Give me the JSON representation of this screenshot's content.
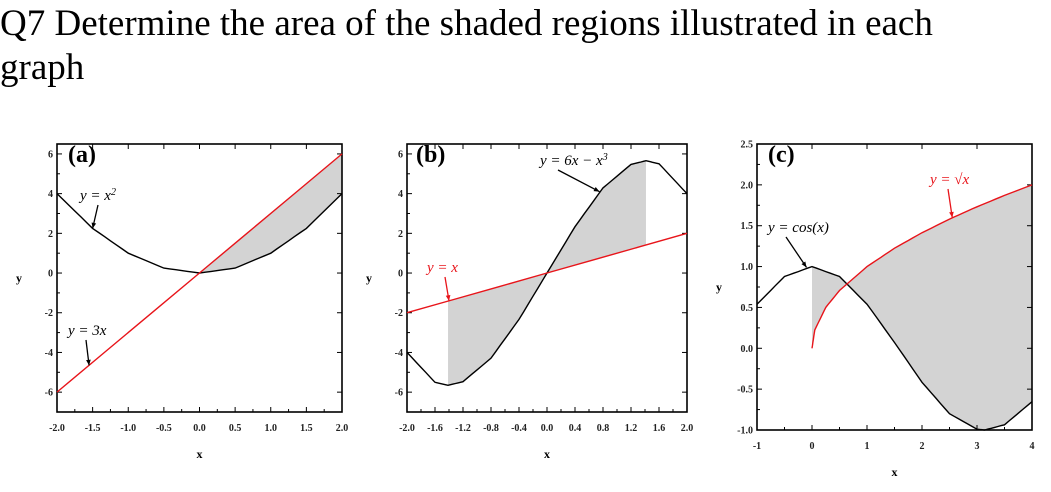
{
  "question": {
    "text": "Q7 Determine the area of the shaded regions illustrated in each\ngraph"
  },
  "colors": {
    "shade": "#d3d3d3",
    "black_curve": "#000000",
    "red_curve": "#e8141a"
  },
  "chart_data": [
    {
      "type": "area",
      "panel_label": "(a)",
      "xlabel": "x",
      "ylabel": "y",
      "xlim": [
        -2.0,
        2.0
      ],
      "ylim": [
        -7,
        6.5
      ],
      "xticks": [
        -2.0,
        -1.5,
        -1.0,
        -0.5,
        0.0,
        0.5,
        1.0,
        1.5,
        2.0
      ],
      "xtick_labels": [
        "-2.0",
        "-1.5",
        "-1.0",
        "-0.5",
        "0.0",
        "0.5",
        "1.0",
        "1.5",
        "2.0"
      ],
      "yticks": [
        -6,
        -4,
        -2,
        0,
        2,
        4,
        6
      ],
      "ytick_labels": [
        "-6",
        "-4",
        "-2",
        "0",
        "2",
        "4",
        "6"
      ],
      "series": [
        {
          "name": "y = x²",
          "color": "#000000",
          "x": [
            -2.0,
            -1.5,
            -1.0,
            -0.5,
            0.0,
            0.5,
            1.0,
            1.5,
            2.0
          ],
          "y": [
            4.0,
            2.25,
            1.0,
            0.25,
            0.0,
            0.25,
            1.0,
            2.25,
            4.0
          ]
        },
        {
          "name": "y = 3x",
          "color": "#e8141a",
          "x": [
            -2.0,
            2.0
          ],
          "y": [
            -6.0,
            6.0
          ]
        }
      ],
      "shaded_region": {
        "between": [
          "y = 3x",
          "y = x²"
        ],
        "x_from": 0.0,
        "x_to": 2.0
      },
      "annotations": [
        {
          "text_main": "y = x",
          "text_sup": "2",
          "color": "#000000",
          "points_to": [
            -1.5,
            2.25
          ]
        },
        {
          "text_main": "y = 3x",
          "text_sup": "",
          "color": "#000000",
          "points_to": [
            -1.55,
            -4.65
          ]
        }
      ]
    },
    {
      "type": "area",
      "panel_label": "(b)",
      "xlabel": "x",
      "ylabel": "y",
      "xlim": [
        -2.0,
        2.0
      ],
      "ylim": [
        -7,
        6.5
      ],
      "xticks": [
        -2.0,
        -1.6,
        -1.2,
        -0.8,
        -0.4,
        0.0,
        0.4,
        0.8,
        1.2,
        1.6,
        2.0
      ],
      "xtick_labels": [
        "-2.0",
        "-1.6",
        "-1.2",
        "-0.8",
        "-0.4",
        "0.0",
        "0.4",
        "0.8",
        "1.2",
        "1.6",
        "2.0"
      ],
      "yticks": [
        -6,
        -4,
        -2,
        0,
        2,
        4,
        6
      ],
      "ytick_labels": [
        "-6",
        "-4",
        "-2",
        "0",
        "2",
        "4",
        "6"
      ],
      "series": [
        {
          "name": "y = 6x − x³",
          "color": "#000000",
          "x": [
            -2.0,
            -1.6,
            -1.414,
            -1.2,
            -0.8,
            -0.4,
            0.0,
            0.4,
            0.8,
            1.2,
            1.414,
            1.6,
            2.0
          ],
          "y": [
            -4.0,
            -5.504,
            -5.657,
            -5.472,
            -4.288,
            -2.336,
            0.0,
            2.336,
            4.288,
            5.472,
            5.657,
            5.504,
            4.0
          ]
        },
        {
          "name": "y = x",
          "color": "#e8141a",
          "x": [
            -2.0,
            2.0
          ],
          "y": [
            -2.0,
            2.0
          ]
        }
      ],
      "shaded_region": {
        "between": [
          "y = 6x − x³",
          "y = x"
        ],
        "x_from": -1.414,
        "x_to": 1.414
      },
      "annotations": [
        {
          "text_main": "y = 6x − x",
          "text_sup": "3",
          "color": "#000000",
          "points_to": [
            0.75,
            4.1
          ]
        },
        {
          "text_main": "y = x",
          "text_sup": "",
          "color": "#e8141a",
          "points_to": [
            -1.4,
            -1.4
          ]
        }
      ]
    },
    {
      "type": "area",
      "panel_label": "(c)",
      "xlabel": "x",
      "ylabel": "y",
      "xlim": [
        -1.0,
        4.0
      ],
      "ylim": [
        -1.0,
        2.5
      ],
      "xticks": [
        -1,
        0,
        1,
        2,
        3,
        4
      ],
      "xtick_labels": [
        "-1",
        "0",
        "1",
        "2",
        "3",
        "4"
      ],
      "yticks": [
        -1.0,
        -0.5,
        0.0,
        0.5,
        1.0,
        1.5,
        2.0,
        2.5
      ],
      "ytick_labels": [
        "-1.0",
        "-0.5",
        "0.0",
        "0.5",
        "1.0",
        "1.5",
        "2.0",
        "2.5"
      ],
      "series": [
        {
          "name": "y = cos(x)",
          "color": "#000000",
          "x": [
            -1.0,
            -0.5,
            0.0,
            0.5,
            1.0,
            1.5,
            2.0,
            2.5,
            3.0,
            3.14,
            3.5,
            4.0
          ],
          "y": [
            0.54,
            0.878,
            1.0,
            0.878,
            0.54,
            0.071,
            -0.416,
            -0.801,
            -0.99,
            -1.0,
            -0.936,
            -0.654
          ]
        },
        {
          "name": "y = √x",
          "color": "#e8141a",
          "x": [
            0.0,
            0.05,
            0.25,
            0.5,
            1.0,
            1.5,
            2.0,
            2.5,
            3.0,
            3.5,
            4.0
          ],
          "y": [
            0.0,
            0.224,
            0.5,
            0.707,
            1.0,
            1.225,
            1.414,
            1.581,
            1.732,
            1.871,
            2.0
          ]
        }
      ],
      "shaded_region": {
        "between": [
          "y = cos(x)",
          "y = √x"
        ],
        "x_from": 0.0,
        "x_to": 4.0
      },
      "annotations": [
        {
          "text_main": "y = cos(x)",
          "text_sup": "",
          "color": "#000000",
          "points_to": [
            -0.1,
            0.99
          ]
        },
        {
          "text_main": "y = √x",
          "text_sup": "",
          "color": "#e8141a",
          "points_to": [
            2.55,
            1.6
          ]
        }
      ]
    }
  ]
}
